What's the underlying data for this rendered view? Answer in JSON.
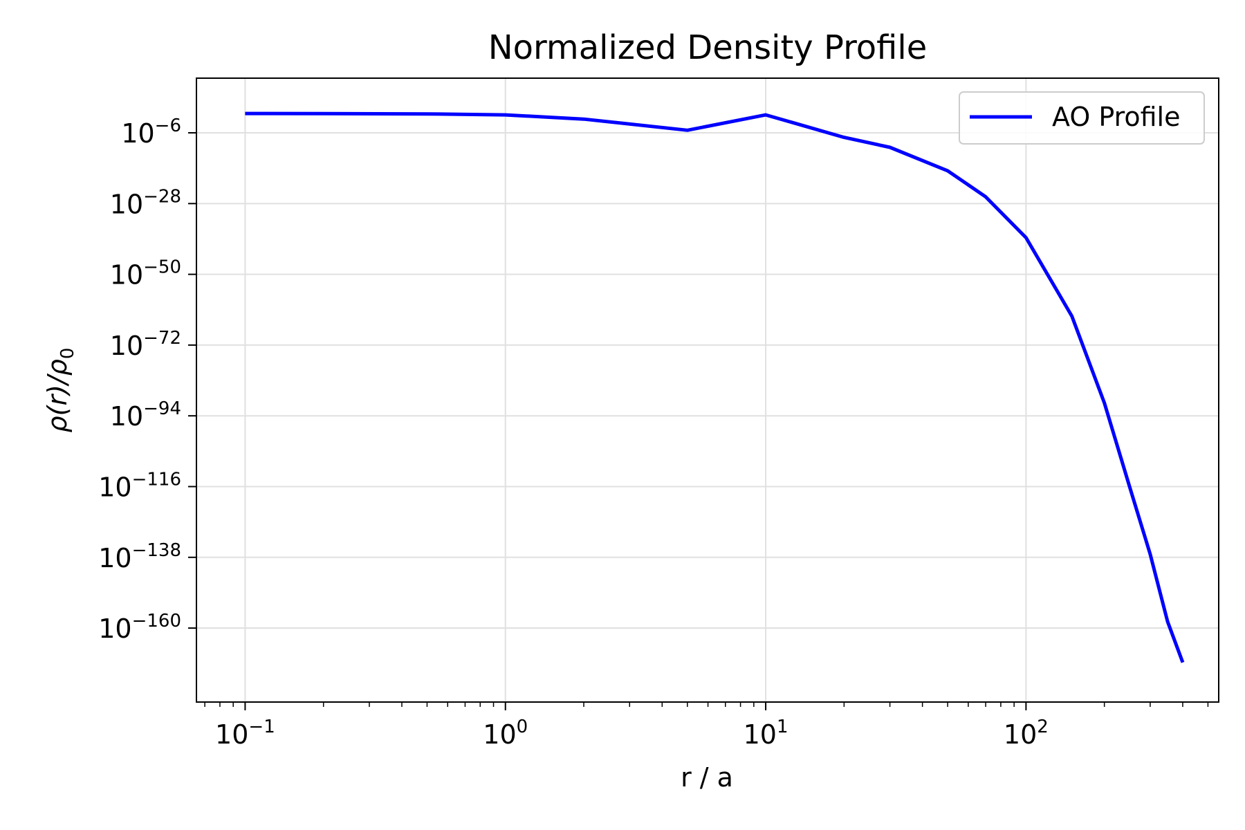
{
  "chart_data": {
    "type": "line",
    "title": "Normalized Density Profile",
    "xlabel": "r / a",
    "ylabel_main": "ρ(r)/ρ",
    "ylabel_sub": "0",
    "xscale": "log",
    "yscale": "log",
    "xlim": [
      0.065,
      550
    ],
    "ylim_log10": [
      -183,
      11
    ],
    "grid": true,
    "legend_position": "top-right",
    "x_tick_labels": [
      {
        "base": "10",
        "exp": "−1",
        "value": 0.1
      },
      {
        "base": "10",
        "exp": "0",
        "value": 1
      },
      {
        "base": "10",
        "exp": "1",
        "value": 10
      },
      {
        "base": "10",
        "exp": "2",
        "value": 100
      }
    ],
    "y_tick_labels": [
      {
        "base": "10",
        "exp": "−6",
        "log10": -6
      },
      {
        "base": "10",
        "exp": "−28",
        "log10": -28
      },
      {
        "base": "10",
        "exp": "−50",
        "log10": -50
      },
      {
        "base": "10",
        "exp": "−72",
        "log10": -72
      },
      {
        "base": "10",
        "exp": "−94",
        "log10": -94
      },
      {
        "base": "10",
        "exp": "−116",
        "log10": -116
      },
      {
        "base": "10",
        "exp": "−138",
        "log10": -138
      },
      {
        "base": "10",
        "exp": "−160",
        "log10": -160
      }
    ],
    "series": [
      {
        "name": "AO Profile",
        "color": "#0000ff",
        "x": [
          0.1,
          0.2,
          0.5,
          1,
          2,
          5,
          10,
          20,
          30,
          50,
          70,
          100,
          150,
          200,
          250,
          300,
          350,
          400
        ],
        "log10_y": [
          0.0,
          -0.02,
          -0.11,
          -0.43,
          -1.74,
          -5.2,
          -0.43,
          -7.4,
          -10.5,
          -17.8,
          -25.9,
          -38.6,
          -63.0,
          -90.0,
          -116.0,
          -137.0,
          -158.0,
          -170.7
        ]
      }
    ]
  }
}
